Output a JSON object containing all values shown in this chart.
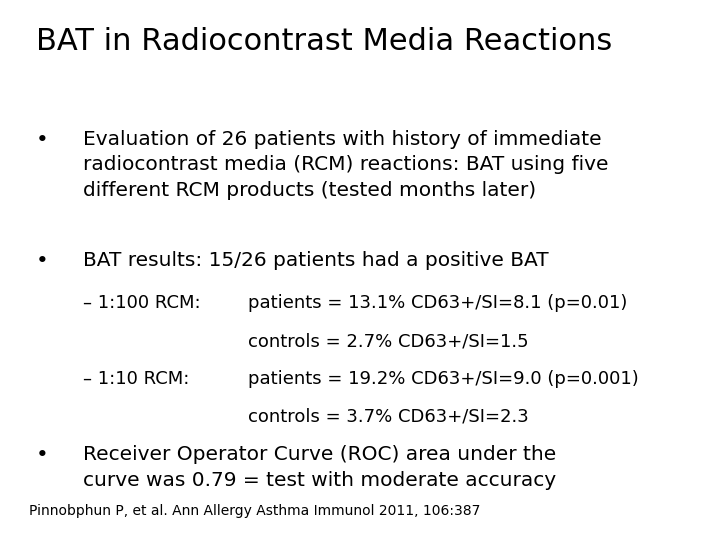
{
  "title": "BAT in Radiocontrast Media Reactions",
  "title_fontsize": 22,
  "background_color": "#ffffff",
  "text_color": "#000000",
  "font_family": "DejaVu Sans",
  "bullet1": "Evaluation of 26 patients with history of immediate\nradiocontrast media (RCM) reactions: BAT using five\ndifferent RCM products (tested months later)",
  "bullet2": "BAT results: 15/26 patients had a positive BAT",
  "sub1_label": "– 1:100 RCM:",
  "sub1_line1": "patients = 13.1% CD63+/SI=8.1 (p=0.01)",
  "sub1_line2": "controls = 2.7% CD63+/SI=1.5",
  "sub2_label": "– 1:10 RCM:",
  "sub2_line1": "patients = 19.2% CD63+/SI=9.0 (p=0.001)",
  "sub2_line2": "controls = 3.7% CD63+/SI=2.3",
  "bullet3": "Receiver Operator Curve (ROC) area under the\ncurve was 0.79 = test with moderate accuracy",
  "footnote": "Pinnobphun P, et al. Ann Allergy Asthma Immunol 2011, 106:387",
  "bullet_fontsize": 14.5,
  "sub_fontsize": 13,
  "footnote_fontsize": 10
}
